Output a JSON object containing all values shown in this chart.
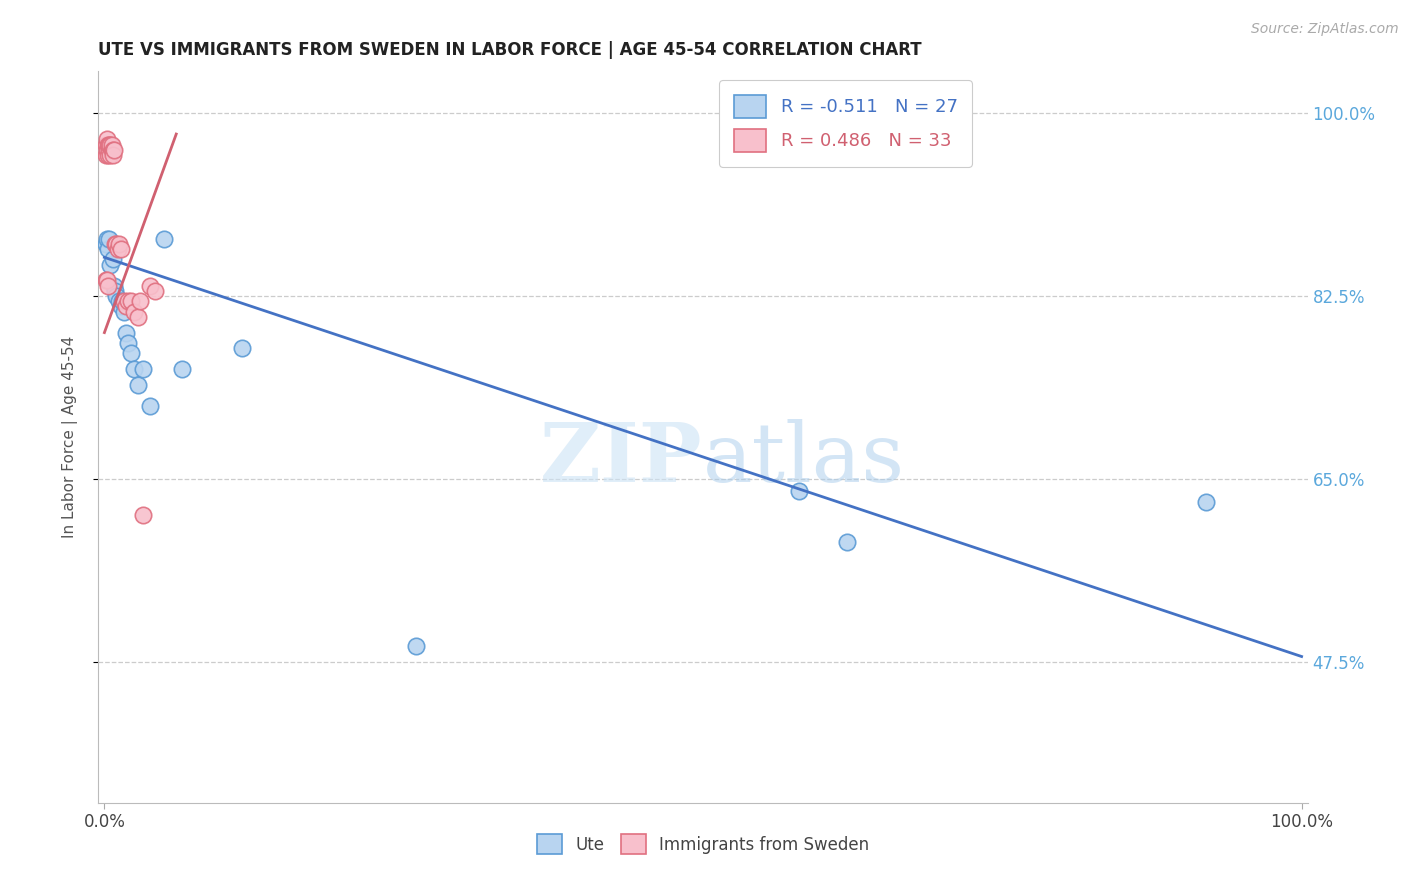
{
  "title": "UTE VS IMMIGRANTS FROM SWEDEN IN LABOR FORCE | AGE 45-54 CORRELATION CHART",
  "source": "Source: ZipAtlas.com",
  "ylabel": "In Labor Force | Age 45-54",
  "xlim": [
    -0.005,
    1.005
  ],
  "ylim": [
    0.34,
    1.04
  ],
  "yticks": [
    0.475,
    0.65,
    0.825,
    1.0
  ],
  "ytick_labels": [
    "47.5%",
    "65.0%",
    "82.5%",
    "100.0%"
  ],
  "xtick_positions": [
    0.0,
    1.0
  ],
  "xtick_labels": [
    "0.0%",
    "100.0%"
  ],
  "legend_labels": [
    "Ute",
    "Immigrants from Sweden"
  ],
  "blue_R": -0.511,
  "blue_N": 27,
  "pink_R": 0.486,
  "pink_N": 33,
  "blue_dot_face": "#b8d4f0",
  "blue_dot_edge": "#5b9bd5",
  "pink_dot_face": "#f8c0cc",
  "pink_dot_edge": "#e07080",
  "blue_line_color": "#4472c4",
  "pink_line_color": "#d06070",
  "watermark_color": "#d0e8f8",
  "grid_color": "#cccccc",
  "title_color": "#222222",
  "right_axis_color": "#5ba8dc",
  "source_color": "#aaaaaa",
  "blue_scatter_x": [
    0.001,
    0.002,
    0.003,
    0.004,
    0.005,
    0.007,
    0.008,
    0.009,
    0.01,
    0.012,
    0.014,
    0.015,
    0.016,
    0.018,
    0.02,
    0.022,
    0.025,
    0.028,
    0.032,
    0.038,
    0.05,
    0.065,
    0.115,
    0.26,
    0.58,
    0.62,
    0.92
  ],
  "blue_scatter_y": [
    0.875,
    0.88,
    0.87,
    0.88,
    0.855,
    0.86,
    0.835,
    0.83,
    0.825,
    0.82,
    0.815,
    0.82,
    0.81,
    0.79,
    0.78,
    0.77,
    0.755,
    0.74,
    0.755,
    0.72,
    0.88,
    0.755,
    0.775,
    0.49,
    0.638,
    0.59,
    0.628
  ],
  "pink_scatter_x": [
    0.001,
    0.001,
    0.002,
    0.002,
    0.003,
    0.003,
    0.004,
    0.004,
    0.005,
    0.005,
    0.006,
    0.006,
    0.007,
    0.007,
    0.008,
    0.009,
    0.01,
    0.011,
    0.012,
    0.014,
    0.016,
    0.018,
    0.02,
    0.022,
    0.025,
    0.028,
    0.03,
    0.032,
    0.038,
    0.042,
    0.001,
    0.002,
    0.003
  ],
  "pink_scatter_y": [
    0.97,
    0.96,
    0.975,
    0.965,
    0.97,
    0.96,
    0.965,
    0.97,
    0.96,
    0.97,
    0.965,
    0.97,
    0.965,
    0.96,
    0.965,
    0.875,
    0.875,
    0.87,
    0.875,
    0.87,
    0.82,
    0.815,
    0.82,
    0.82,
    0.81,
    0.805,
    0.82,
    0.615,
    0.835,
    0.83,
    0.84,
    0.84,
    0.835
  ],
  "blue_trend_x": [
    0.0,
    1.0
  ],
  "blue_trend_y": [
    0.862,
    0.48
  ],
  "pink_trend_x": [
    0.0,
    0.06
  ],
  "pink_trend_y": [
    0.79,
    0.98
  ]
}
